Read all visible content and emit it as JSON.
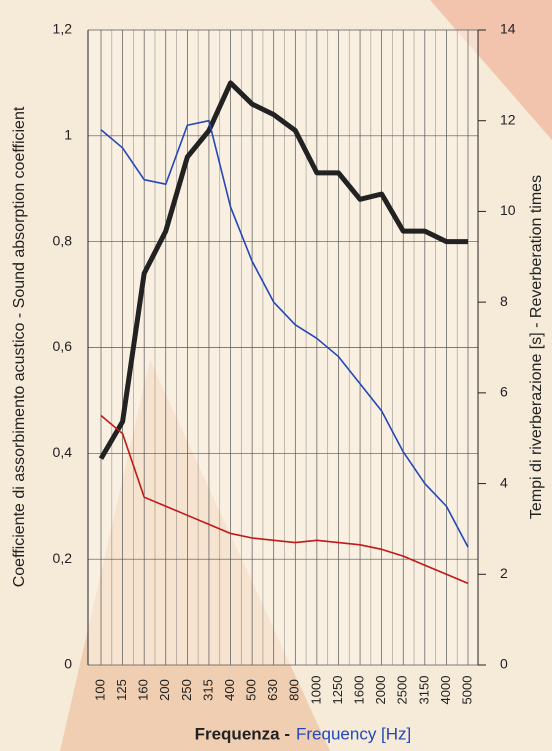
{
  "chart_data": {
    "type": "line",
    "y_label": "Coefficiente di assorbimento acustico - Sound absorption coefficient",
    "y2_label": "Tempi di riverberazione [s] - Reverberation times",
    "x_label_it": "Frequenza -",
    "x_label_en": "Frequency [Hz]",
    "categories": [
      "100",
      "125",
      "160",
      "200",
      "250",
      "315",
      "400",
      "500",
      "630",
      "800",
      "1000",
      "1250",
      "1600",
      "2000",
      "2500",
      "3150",
      "4000",
      "5000"
    ],
    "series": [
      {
        "color": "#222222",
        "axis": "y",
        "values": [
          0.39,
          0.46,
          0.74,
          0.82,
          0.96,
          1.01,
          1.1,
          1.06,
          1.04,
          1.01,
          0.93,
          0.93,
          0.88,
          0.89,
          0.82,
          0.82,
          0.8,
          0.8
        ]
      },
      {
        "color": "#2447b8",
        "axis": "y2",
        "values": [
          11.8,
          11.4,
          10.7,
          10.6,
          11.9,
          12.0,
          10.1,
          8.9,
          8.0,
          7.5,
          7.2,
          6.8,
          6.2,
          5.6,
          4.7,
          4.0,
          3.5,
          2.6
        ]
      },
      {
        "color": "#c01818",
        "axis": "y2",
        "values": [
          5.5,
          5.1,
          3.7,
          3.5,
          3.3,
          3.1,
          2.9,
          2.8,
          2.75,
          2.7,
          2.75,
          2.7,
          2.65,
          2.55,
          2.4,
          2.2,
          2.0,
          1.8
        ]
      }
    ],
    "ylim": [
      0,
      1.2
    ],
    "yticks": [
      0,
      {
        "value": 0.2,
        "label": "0,2"
      },
      {
        "value": 0.4,
        "label": "0,4"
      },
      {
        "value": 0.6,
        "label": "0,6"
      },
      {
        "value": 0.8,
        "label": "0,8"
      },
      1,
      {
        "value": 1.2,
        "label": "1,2"
      }
    ],
    "y2lim": [
      0,
      14
    ],
    "y2ticks": [
      0,
      2,
      4,
      6,
      8,
      10,
      12,
      14
    ],
    "grid": true
  }
}
